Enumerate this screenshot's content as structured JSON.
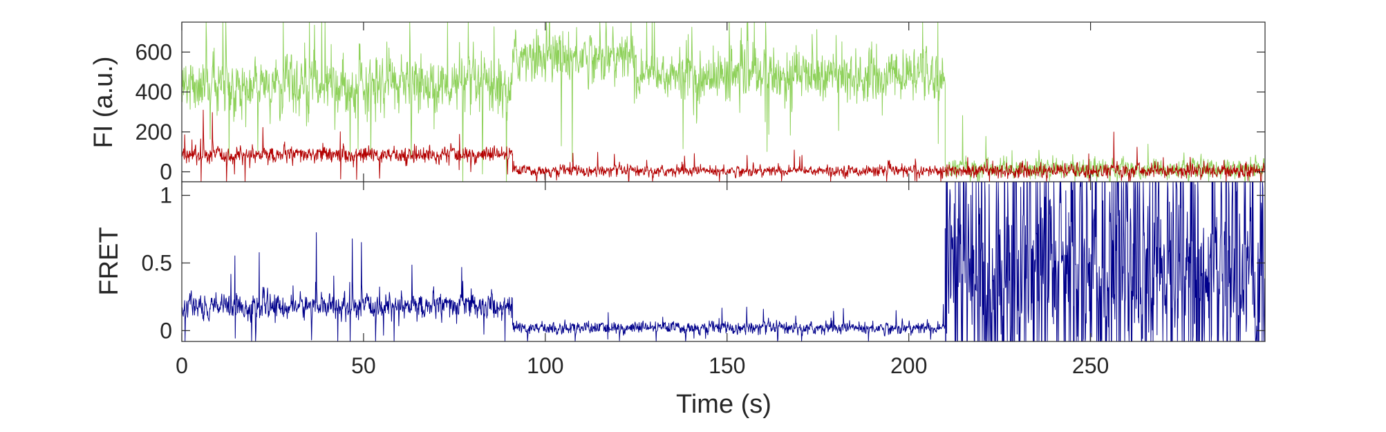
{
  "chart_data": [
    {
      "type": "line",
      "ylabel": "FI (a.u.)",
      "xlim": [
        0,
        298
      ],
      "ylim": [
        -50,
        750
      ],
      "yticks": [
        0,
        200,
        400,
        600
      ],
      "ytick_labels": [
        "0",
        "200",
        "400",
        "600"
      ],
      "colors": {
        "donor": "#8ed15a",
        "acceptor": "#b30000"
      },
      "series": [
        {
          "color_key": "donor",
          "segments": [
            {
              "x_start": 0,
              "x_end": 91,
              "mean": 430,
              "noise": 150,
              "spike": 0.05
            },
            {
              "x_start": 91,
              "x_end": 125,
              "mean": 580,
              "noise": 140,
              "spike": 0.05
            },
            {
              "x_start": 125,
              "x_end": 210,
              "mean": 480,
              "noise": 140,
              "spike": 0.05
            },
            {
              "x_start": 210,
              "x_end": 298,
              "mean": 15,
              "noise": 55,
              "spike": 0.03
            }
          ]
        },
        {
          "color_key": "acceptor",
          "segments": [
            {
              "x_start": 0,
              "x_end": 91,
              "mean": 85,
              "noise": 45,
              "spike": 0.04
            },
            {
              "x_start": 91,
              "x_end": 210,
              "mean": 5,
              "noise": 30,
              "spike": 0.03
            },
            {
              "x_start": 210,
              "x_end": 298,
              "mean": 5,
              "noise": 40,
              "spike": 0.03
            }
          ]
        }
      ]
    },
    {
      "type": "line",
      "xlabel": "Time (s)",
      "ylabel": "FRET",
      "xlim": [
        0,
        298
      ],
      "ylim": [
        -0.08,
        1.1
      ],
      "yticks": [
        0,
        0.5,
        1
      ],
      "ytick_labels": [
        "0",
        "0.5",
        "1"
      ],
      "xticks": [
        0,
        50,
        100,
        150,
        200,
        250
      ],
      "xtick_labels": [
        "0",
        "50",
        "100",
        "150",
        "200",
        "250"
      ],
      "colors": {
        "fret": "#00008b"
      },
      "series": [
        {
          "color_key": "fret",
          "segments": [
            {
              "x_start": 0,
              "x_end": 91,
              "mean": 0.18,
              "noise": 0.1,
              "spike": 0.05
            },
            {
              "x_start": 91,
              "x_end": 210,
              "mean": 0.02,
              "noise": 0.05,
              "spike": 0.03
            },
            {
              "x_start": 210,
              "x_end": 298,
              "mean": 0.45,
              "noise": 0.7,
              "spike": 0.3
            }
          ]
        }
      ]
    }
  ]
}
